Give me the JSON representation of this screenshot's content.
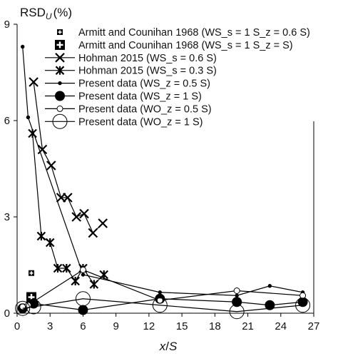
{
  "chart_data": {
    "type": "scatter",
    "ylabel_main": "RSD",
    "ylabel_sub": "U",
    "ylabel_unit": "(%)",
    "xlabel_var": "x",
    "xlabel_sep": "/",
    "xlabel_den": "S",
    "xlim": [
      0,
      27
    ],
    "ylim": [
      0,
      9
    ],
    "x_ticks": [
      0,
      3,
      6,
      9,
      12,
      15,
      18,
      21,
      24,
      27
    ],
    "y_ticks": [
      0,
      3,
      6,
      9
    ],
    "grid": false,
    "legend_position": "top-right",
    "series": [
      {
        "name": "Armitt and Counihan 1968 (WS_s = 1 S_z = 0.6 S)",
        "marker": "square-plus-small",
        "line": false,
        "points": [
          [
            1.3,
            1.25
          ]
        ]
      },
      {
        "name": "Armitt and Counihan 1968 (WS_s = 1 S_z = S)",
        "marker": "square-plus-large",
        "line": false,
        "points": [
          [
            1.3,
            0.5
          ]
        ]
      },
      {
        "name": "Hohman 2015 (WS_s = 0.6 S)",
        "marker": "x",
        "line": true,
        "points": [
          [
            1.5,
            7.2
          ],
          [
            2.3,
            5.1
          ],
          [
            3.1,
            4.6
          ],
          [
            4.0,
            3.6
          ],
          [
            4.6,
            3.6
          ],
          [
            5.4,
            3.0
          ],
          [
            6.1,
            3.1
          ],
          [
            6.9,
            2.5
          ],
          [
            7.8,
            2.8
          ]
        ]
      },
      {
        "name": "Hohman 2015 (WS_s = 0.3 S)",
        "marker": "star",
        "line": true,
        "points": [
          [
            1.4,
            5.6
          ],
          [
            2.2,
            2.4
          ],
          [
            3.0,
            2.2
          ],
          [
            3.7,
            1.4
          ],
          [
            4.5,
            1.4
          ],
          [
            5.3,
            1.0
          ],
          [
            6.0,
            1.4
          ],
          [
            7.0,
            0.9
          ],
          [
            7.9,
            1.2
          ]
        ]
      },
      {
        "name": "Present data (WS_z = 0.5 S)",
        "marker": "dot-small",
        "line": true,
        "points": [
          [
            0.5,
            8.3
          ],
          [
            1.0,
            6.1
          ],
          [
            6.0,
            1.2
          ],
          [
            13.0,
            0.65
          ],
          [
            20.0,
            0.55
          ],
          [
            23.0,
            0.85
          ],
          [
            26.0,
            0.65
          ]
        ]
      },
      {
        "name": "Present data (WS_z = 1 S)",
        "marker": "dot-filled",
        "line": true,
        "points": [
          [
            0.5,
            0.15
          ],
          [
            1.5,
            0.3
          ],
          [
            6.0,
            0.1
          ],
          [
            13.0,
            0.45
          ],
          [
            20.0,
            0.35
          ],
          [
            23.0,
            0.25
          ],
          [
            26.0,
            0.35
          ]
        ]
      },
      {
        "name": "Present data (WO_z = 0.5 S)",
        "marker": "circle-open-small",
        "line": true,
        "points": [
          [
            0.5,
            0.2
          ],
          [
            1.0,
            0.25
          ],
          [
            6.0,
            1.35
          ],
          [
            13.0,
            0.4
          ],
          [
            20.0,
            0.7
          ],
          [
            26.0,
            0.55
          ]
        ]
      },
      {
        "name": "Present data (WO_z = 1 S)",
        "marker": "circle-open-large",
        "line": true,
        "points": [
          [
            0.5,
            0.15
          ],
          [
            1.5,
            0.2
          ],
          [
            6.0,
            0.45
          ],
          [
            13.0,
            0.25
          ],
          [
            20.0,
            0.05
          ],
          [
            26.0,
            0.25
          ]
        ]
      }
    ]
  }
}
